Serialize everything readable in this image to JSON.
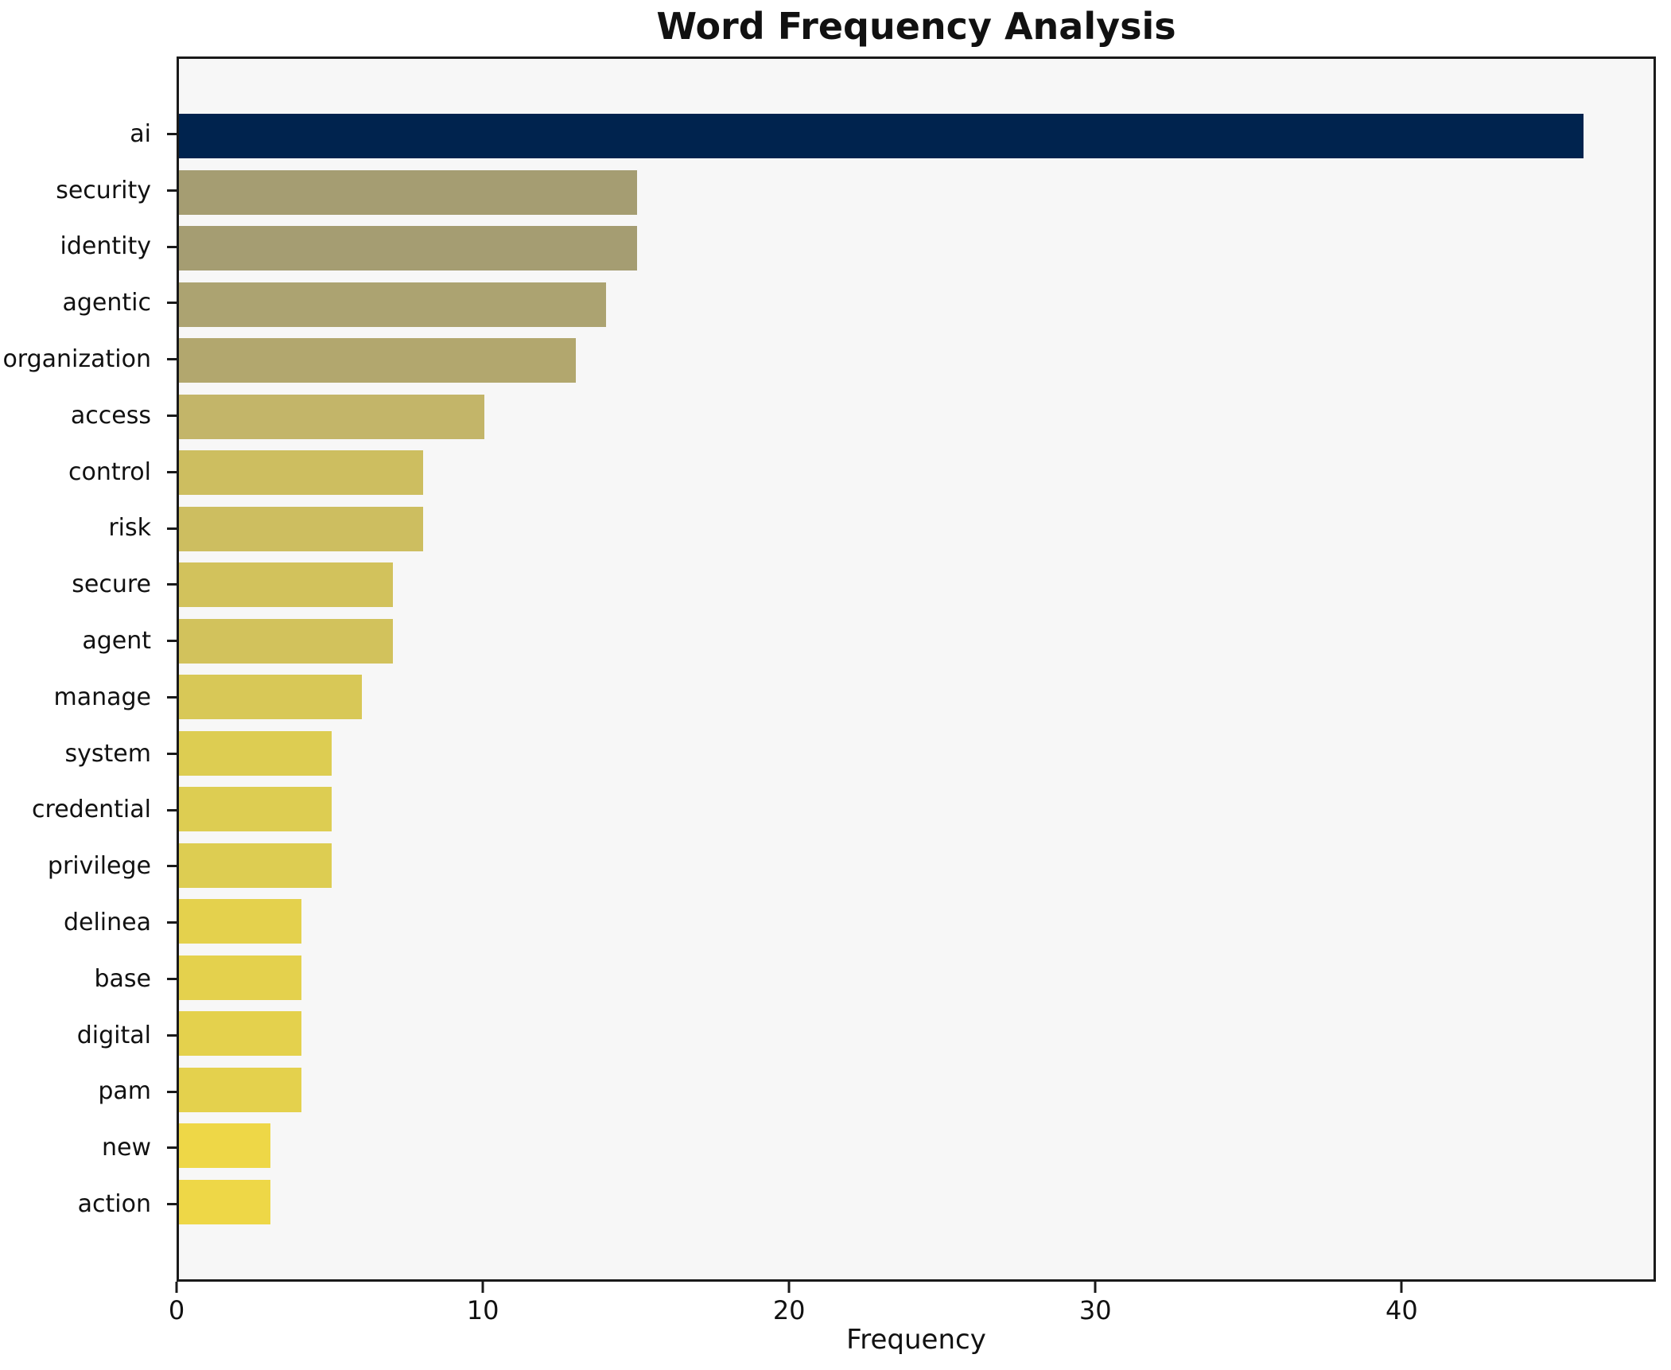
{
  "page": {
    "title": "Word Frequency Analysis"
  },
  "chart_data": {
    "type": "bar",
    "orientation": "horizontal",
    "title": "Word Frequency Analysis",
    "xlabel": "Frequency",
    "ylabel": "",
    "categories": [
      "ai",
      "security",
      "identity",
      "agentic",
      "organization",
      "access",
      "control",
      "risk",
      "secure",
      "agent",
      "manage",
      "system",
      "credential",
      "privilege",
      "delinea",
      "base",
      "digital",
      "pam",
      "new",
      "action"
    ],
    "values": [
      46,
      15,
      15,
      14,
      13,
      10,
      8,
      8,
      7,
      7,
      6,
      5,
      5,
      5,
      4,
      4,
      4,
      4,
      3,
      3
    ],
    "bar_colors": [
      "#00234e",
      "#a59d72",
      "#a59d72",
      "#aca371",
      "#b2a76e",
      "#c3b569",
      "#cdbe60",
      "#cdbe60",
      "#d2c25c",
      "#d2c25c",
      "#d8c857",
      "#ddcd52",
      "#ddcd52",
      "#ddcd52",
      "#e4d14d",
      "#e4d14d",
      "#e4d14d",
      "#e4d14d",
      "#eed747",
      "#eed747"
    ],
    "xticks": [
      0,
      10,
      20,
      30,
      40
    ],
    "xlim": [
      0,
      48.3
    ],
    "grid": false,
    "legend": "none",
    "plot_background": "#f7f7f7",
    "figure_background": "#ffffff",
    "spine_color": "#1a1a1a",
    "colormap": "cividis_r"
  }
}
